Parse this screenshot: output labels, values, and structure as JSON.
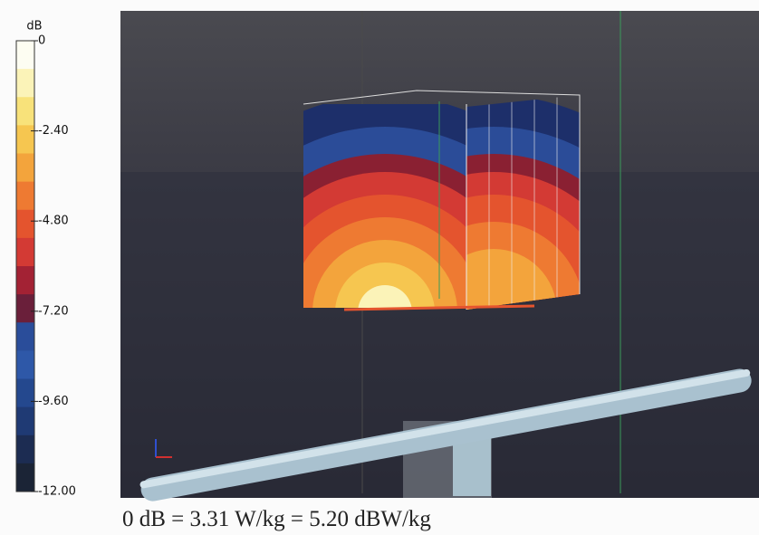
{
  "colorbar": {
    "unit": "dB",
    "ticks": [
      0,
      {
        "value": -2.4,
        "label": "-2.40"
      },
      {
        "value": -4.8,
        "label": "-4.80"
      },
      {
        "value": -7.2,
        "label": "-7.20"
      },
      {
        "value": -9.6,
        "label": "-9.60"
      },
      {
        "value": -12,
        "label": "-12.00"
      }
    ],
    "range": [
      0,
      -12
    ],
    "colors": [
      "#fdfdf2",
      "#fbf3b8",
      "#f8e27a",
      "#f6c650",
      "#f3a43c",
      "#ee7a32",
      "#e4542e",
      "#d33a34",
      "#a32234",
      "#6a1f3a",
      "#2a4d9a",
      "#2e58a8",
      "#24488e",
      "#1f3a74",
      "#1c2c52",
      "#1b2436"
    ]
  },
  "caption": "0 dB = 3.31 W/kg = 5.20 dBW/kg"
}
